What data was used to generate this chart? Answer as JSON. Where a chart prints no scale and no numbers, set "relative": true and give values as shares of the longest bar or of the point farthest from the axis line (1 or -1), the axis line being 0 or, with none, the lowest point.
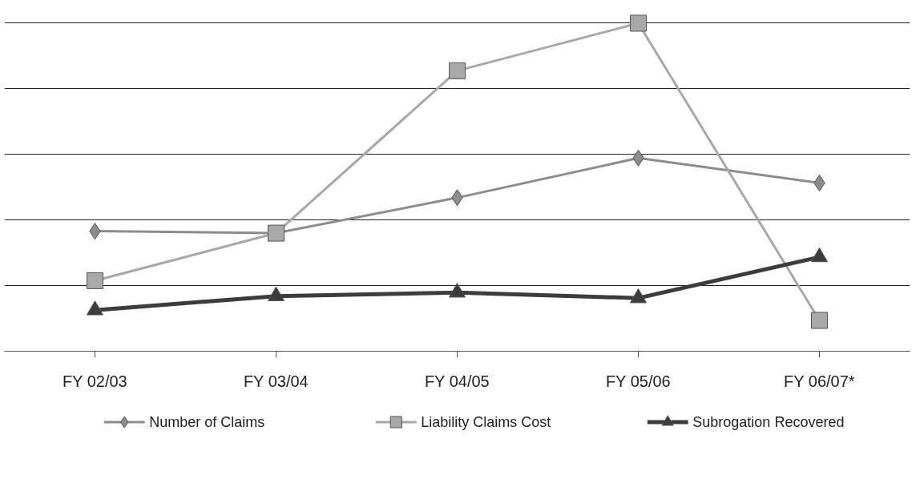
{
  "chart_data": {
    "type": "line",
    "relative": true,
    "grid": "y",
    "legend": "bottom",
    "categories": [
      "FY 02/03",
      "FY 03/04",
      "FY 04/05",
      "FY 05/06",
      "FY 06/07*"
    ],
    "series": [
      {
        "name": "Number of Claims",
        "color": "#8c8c8c",
        "marker": "diamond",
        "values": [
          0.366,
          0.36,
          0.468,
          0.589,
          0.513
        ]
      },
      {
        "name": "Liability Claims Cost",
        "color": "#a8a8a8",
        "marker": "square",
        "values": [
          0.215,
          0.36,
          0.855,
          1,
          0.094
        ]
      },
      {
        "name": "Subrogation Recovered",
        "color": "#3c3c3c",
        "marker": "triangle",
        "values": [
          0.125,
          0.168,
          0.179,
          0.162,
          0.287
        ]
      }
    ]
  }
}
